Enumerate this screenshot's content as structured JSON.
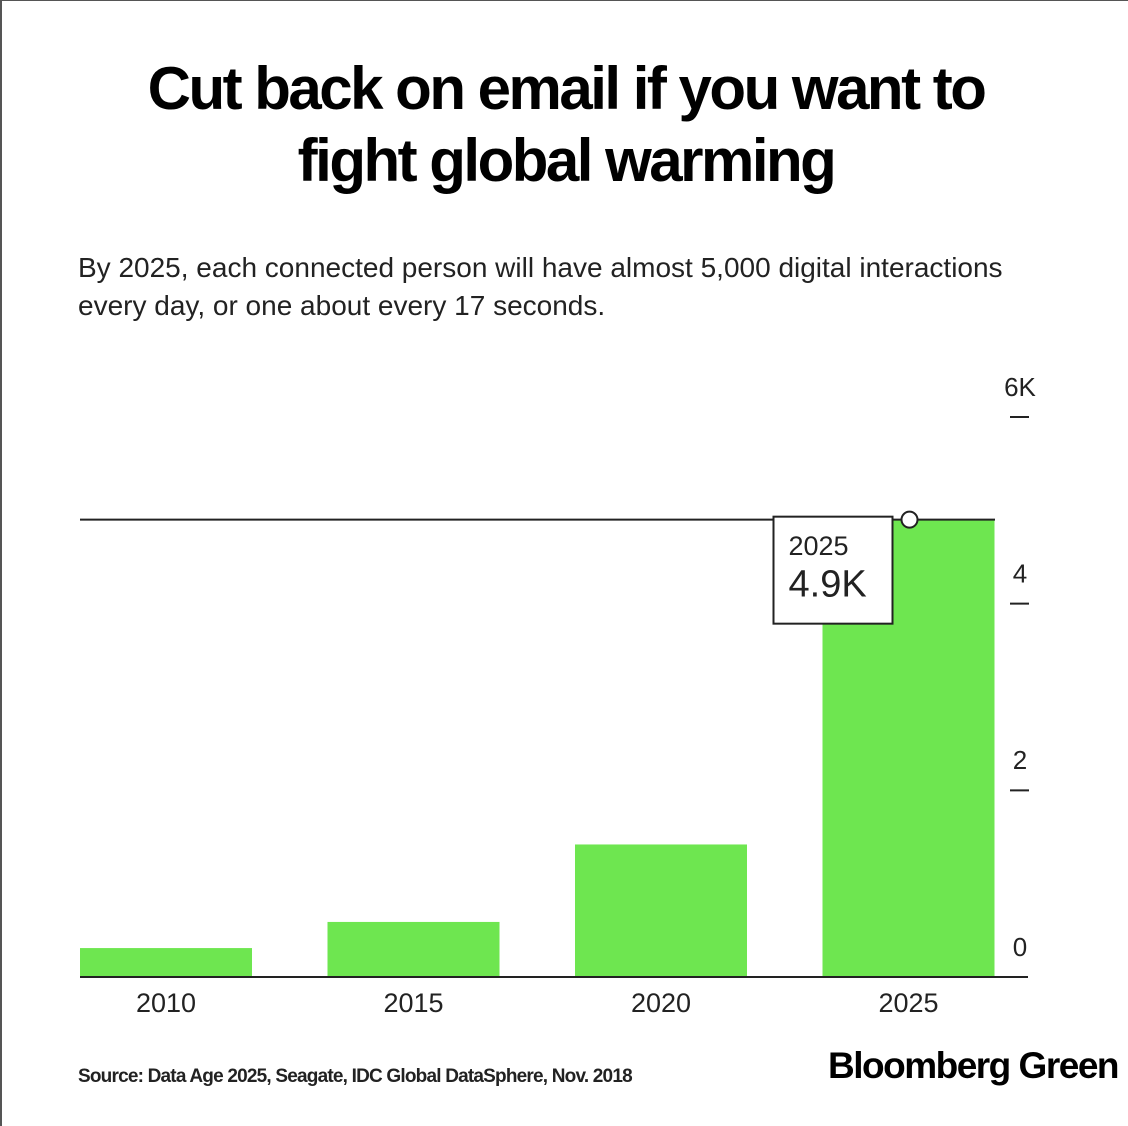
{
  "chart_data": {
    "type": "bar",
    "title": "Cut back on email if you want to fight global warming",
    "subtitle": "By 2025, each connected person will have almost 5,000 digital interactions every day, or one about every 17 seconds.",
    "categories": [
      "2010",
      "2015",
      "2020",
      "2025"
    ],
    "values": [
      0.31,
      0.59,
      1.42,
      4.9
    ],
    "value_labels": [
      null,
      null,
      null,
      "4.9K"
    ],
    "color": "#6ee650",
    "ylim": [
      0,
      6
    ],
    "yticks": [
      0,
      2,
      4,
      {
        "value": 6,
        "label": "6K"
      }
    ],
    "source": "Source: Data Age 2025, Seagate, IDC Global DataSphere, Nov. 2018",
    "brand": "Bloomberg Green"
  }
}
